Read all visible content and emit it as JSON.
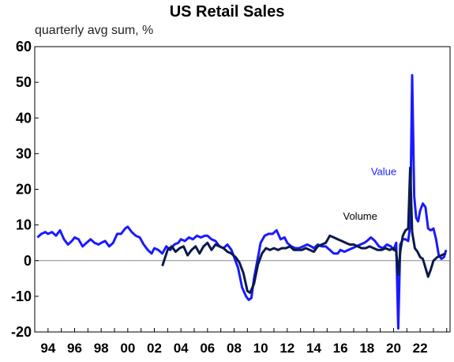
{
  "chart_data": {
    "type": "line",
    "title": "US Retail Sales",
    "subtitle": "quarterly avg sum, %",
    "ylim": [
      -20,
      60
    ],
    "yticks": [
      -20,
      -10,
      0,
      10,
      20,
      30,
      40,
      50,
      60
    ],
    "xlim": [
      1993.0,
      2024.25
    ],
    "xticks": [
      {
        "x": 1994,
        "label": "94"
      },
      {
        "x": 1996,
        "label": "96"
      },
      {
        "x": 1998,
        "label": "98"
      },
      {
        "x": 2000,
        "label": "00"
      },
      {
        "x": 2002,
        "label": "02"
      },
      {
        "x": 2004,
        "label": "04"
      },
      {
        "x": 2006,
        "label": "06"
      },
      {
        "x": 2008,
        "label": "08"
      },
      {
        "x": 2010,
        "label": "10"
      },
      {
        "x": 2012,
        "label": "12"
      },
      {
        "x": 2014,
        "label": "14"
      },
      {
        "x": 2016,
        "label": "16"
      },
      {
        "x": 2018,
        "label": "18"
      },
      {
        "x": 2020,
        "label": "20"
      },
      {
        "x": 2022,
        "label": "22"
      }
    ],
    "grid": false,
    "zero_line": true,
    "series": [
      {
        "name": "Value",
        "color": "#1a1aff",
        "x": [
          1993.2,
          1993.5,
          1993.8,
          1994.0,
          1994.3,
          1994.6,
          1994.9,
          1995.2,
          1995.5,
          1995.8,
          1996.0,
          1996.3,
          1996.6,
          1996.9,
          1997.2,
          1997.5,
          1997.8,
          1998.0,
          1998.3,
          1998.6,
          1998.9,
          1999.2,
          1999.5,
          1999.8,
          2000.0,
          2000.3,
          2000.6,
          2000.9,
          2001.2,
          2001.5,
          2001.8,
          2002.0,
          2002.3,
          2002.6,
          2002.9,
          2003.2,
          2003.5,
          2003.8,
          2004.0,
          2004.3,
          2004.6,
          2004.9,
          2005.2,
          2005.5,
          2005.8,
          2006.0,
          2006.3,
          2006.6,
          2006.9,
          2007.2,
          2007.5,
          2007.8,
          2008.0,
          2008.3,
          2008.6,
          2008.9,
          2009.1,
          2009.3,
          2009.5,
          2009.8,
          2010.0,
          2010.3,
          2010.6,
          2010.9,
          2011.2,
          2011.5,
          2011.8,
          2012.0,
          2012.3,
          2012.6,
          2012.9,
          2013.2,
          2013.5,
          2013.8,
          2014.0,
          2014.3,
          2014.6,
          2014.9,
          2015.2,
          2015.5,
          2015.8,
          2016.0,
          2016.3,
          2016.6,
          2016.9,
          2017.2,
          2017.5,
          2017.8,
          2018.0,
          2018.3,
          2018.6,
          2018.9,
          2019.2,
          2019.5,
          2019.8,
          2020.0,
          2020.2,
          2020.35,
          2020.5,
          2020.7,
          2020.9,
          2021.1,
          2021.25,
          2021.4,
          2021.55,
          2021.7,
          2021.85,
          2022.0,
          2022.2,
          2022.4,
          2022.6,
          2022.8,
          2023.0,
          2023.2,
          2023.4,
          2023.6,
          2023.8,
          2023.95
        ],
        "values": [
          6.5,
          7.5,
          8.0,
          7.5,
          8.0,
          7.0,
          8.5,
          6.0,
          4.5,
          5.5,
          6.5,
          6.0,
          4.0,
          5.0,
          6.0,
          5.0,
          4.5,
          5.0,
          5.5,
          4.0,
          5.0,
          7.5,
          7.5,
          9.0,
          9.5,
          8.0,
          7.0,
          6.5,
          4.5,
          3.0,
          2.0,
          3.5,
          3.0,
          2.0,
          4.0,
          3.0,
          4.5,
          5.0,
          6.0,
          5.5,
          6.5,
          6.0,
          7.0,
          6.5,
          7.0,
          7.0,
          6.0,
          5.5,
          4.0,
          3.5,
          4.5,
          3.0,
          1.0,
          -2.0,
          -7.5,
          -10.0,
          -11.0,
          -10.5,
          -5.0,
          1.0,
          5.0,
          7.0,
          7.5,
          7.5,
          8.5,
          6.0,
          6.5,
          5.0,
          4.0,
          3.5,
          3.5,
          4.0,
          4.5,
          4.0,
          3.5,
          4.5,
          4.0,
          4.0,
          3.0,
          2.0,
          2.0,
          3.0,
          2.5,
          3.0,
          3.5,
          4.0,
          4.5,
          5.0,
          5.5,
          6.5,
          5.5,
          4.0,
          3.5,
          4.5,
          4.0,
          3.0,
          5.0,
          -19.0,
          4.5,
          6.0,
          6.0,
          5.5,
          10.0,
          52.0,
          18.0,
          12.0,
          11.0,
          14.0,
          16.0,
          15.0,
          9.0,
          8.5,
          9.0,
          6.0,
          1.5,
          0.5,
          1.0,
          3.0
        ]
      },
      {
        "name": "Volume",
        "color": "#0a1a4a",
        "x": [
          2002.6,
          2003.0,
          2003.3,
          2003.6,
          2003.9,
          2004.2,
          2004.5,
          2004.8,
          2005.1,
          2005.4,
          2005.7,
          2006.0,
          2006.3,
          2006.6,
          2006.9,
          2007.2,
          2007.5,
          2007.8,
          2008.1,
          2008.4,
          2008.7,
          2009.0,
          2009.2,
          2009.5,
          2009.8,
          2010.1,
          2010.4,
          2010.7,
          2011.0,
          2011.3,
          2011.6,
          2011.9,
          2012.2,
          2012.5,
          2012.8,
          2013.1,
          2013.4,
          2013.7,
          2014.0,
          2014.3,
          2014.6,
          2014.9,
          2015.2,
          2015.5,
          2015.8,
          2016.1,
          2016.4,
          2016.7,
          2017.0,
          2017.3,
          2017.6,
          2017.9,
          2018.2,
          2018.5,
          2018.8,
          2019.1,
          2019.4,
          2019.7,
          2020.0,
          2020.2,
          2020.35,
          2020.5,
          2020.7,
          2020.9,
          2021.1,
          2021.25,
          2021.4,
          2021.6,
          2021.8,
          2022.0,
          2022.2,
          2022.4,
          2022.6,
          2022.8,
          2023.0,
          2023.3,
          2023.6,
          2023.9
        ],
        "values": [
          -1.5,
          3.0,
          4.0,
          2.5,
          3.5,
          4.0,
          1.5,
          3.0,
          4.0,
          2.0,
          4.0,
          5.0,
          3.0,
          4.5,
          4.0,
          3.5,
          2.5,
          2.0,
          1.0,
          -0.5,
          -3.5,
          -8.5,
          -9.0,
          -6.5,
          -1.0,
          2.0,
          3.5,
          3.0,
          3.5,
          3.0,
          3.5,
          3.5,
          4.0,
          3.0,
          3.0,
          3.0,
          3.5,
          3.0,
          2.5,
          4.0,
          4.5,
          5.0,
          7.0,
          6.5,
          6.0,
          5.5,
          5.0,
          4.5,
          4.5,
          4.0,
          3.5,
          3.5,
          4.0,
          3.5,
          3.0,
          3.0,
          3.5,
          3.0,
          3.5,
          2.5,
          -4.0,
          2.5,
          7.0,
          8.5,
          9.0,
          26.0,
          8.0,
          3.5,
          2.5,
          1.0,
          0.5,
          -2.0,
          -4.5,
          -2.5,
          0.0,
          1.0,
          1.5,
          2.0
        ]
      }
    ],
    "annotations": [
      {
        "text": "Value",
        "series": "Value",
        "x": 2018.3,
        "y": 24
      },
      {
        "text": "Volume",
        "series": "Volume",
        "x": 2016.2,
        "y": 11.5
      }
    ]
  }
}
